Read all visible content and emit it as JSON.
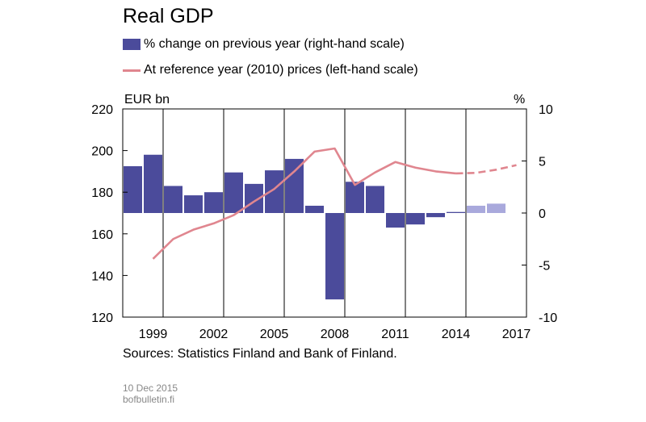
{
  "title": "Real GDP",
  "legend": {
    "bars": "% change on previous year (right-hand scale)",
    "line": "At reference year (2010) prices (left-hand scale)"
  },
  "units": {
    "left": "EUR bn",
    "right": "%"
  },
  "sources": "Sources: Statistics Finland and Bank of Finland.",
  "footer": {
    "date": "10 Dec 2015",
    "site": "bofbulletin.fi"
  },
  "colors": {
    "bar": "#4b4b9b",
    "bar_forecast": "#a9a9dc",
    "line": "#e0868f"
  },
  "chart_data": {
    "type": "bar",
    "title": "Real GDP",
    "categories": [
      "1998",
      "1999",
      "2000",
      "2001",
      "2002",
      "2003",
      "2004",
      "2005",
      "2006",
      "2007",
      "2008",
      "2009",
      "2010",
      "2011",
      "2012",
      "2013",
      "2014",
      "2015",
      "2016",
      "2017"
    ],
    "x_tick_labels": [
      "1999",
      "2002",
      "2005",
      "2008",
      "2011",
      "2014",
      "2017"
    ],
    "left_axis": {
      "label": "EUR bn",
      "ylim": [
        120,
        220
      ],
      "ticks": [
        "120",
        "140",
        "160",
        "180",
        "200",
        "220"
      ]
    },
    "right_axis": {
      "label": "%",
      "ylim": [
        -10,
        10
      ],
      "ticks": [
        "-10",
        "-5",
        "0",
        "5",
        "10"
      ]
    },
    "series": [
      {
        "name": "% change on previous year (right-hand scale)",
        "type": "bar",
        "axis": "right",
        "values": [
          4.5,
          5.6,
          2.6,
          1.7,
          2.0,
          3.9,
          2.8,
          4.1,
          5.2,
          0.7,
          -8.3,
          3.0,
          2.6,
          -1.4,
          -1.1,
          -0.4,
          0.1,
          0.7,
          0.9,
          null
        ],
        "forecast_from": "2015"
      },
      {
        "name": "At reference year (2010) prices (left-hand scale)",
        "type": "line",
        "axis": "left",
        "values": [
          null,
          148.0,
          157.5,
          162.0,
          165.0,
          169.0,
          175.5,
          181.5,
          190.0,
          199.5,
          201.0,
          183.5,
          189.5,
          194.5,
          191.8,
          190.0,
          189.0,
          189.3,
          190.8,
          193.0
        ],
        "forecast_from": "2014"
      }
    ],
    "grid": "vertical"
  }
}
